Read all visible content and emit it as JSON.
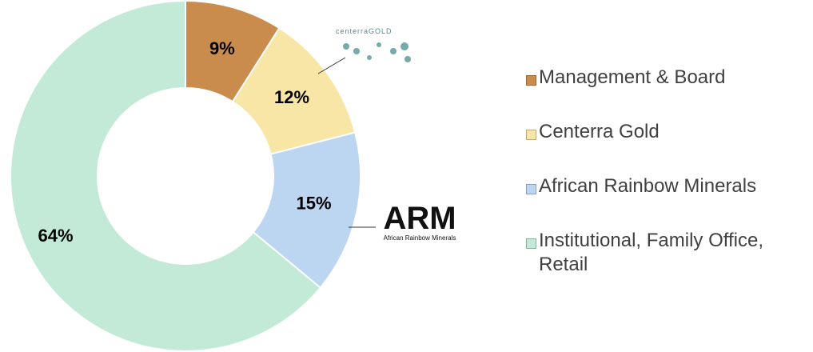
{
  "chart_data": {
    "type": "donut",
    "categories": [
      "Management & Board",
      "Centerra Gold",
      "African Rainbow Minerals",
      "Institutional, Family Office, Retail"
    ],
    "values": [
      9,
      12,
      15,
      64
    ],
    "value_labels": [
      "9%",
      "12%",
      "15%",
      "64%"
    ],
    "colors": [
      "#c98c4c",
      "#f7e6a6",
      "#bcd6f2",
      "#c2ead7"
    ],
    "legend": "right",
    "annotations": [
      "centerraGOLD",
      "ARM",
      "African Rainbow Minerals"
    ]
  }
}
